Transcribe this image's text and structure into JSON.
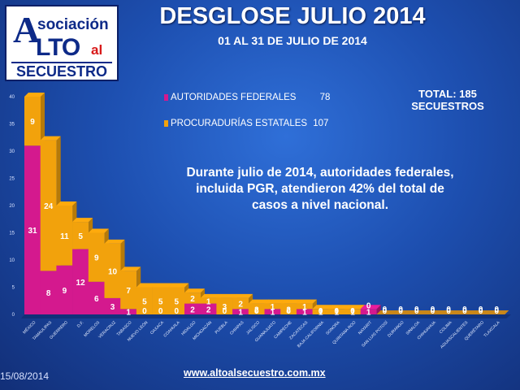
{
  "header": {
    "title": "DESGLOSE JULIO 2014",
    "subtitle": "01 AL 31 DE JULIO DE 2014"
  },
  "logo": {
    "a": "A",
    "asociacion": "sociación",
    "alto": "LTO",
    "al": "al",
    "secuestro": "SECUESTRO"
  },
  "legend": {
    "federales_label": "AUTORIDADES FEDERALES",
    "federales_value": "78",
    "estatales_label": "PROCURADURÍAS ESTATALES",
    "estatales_value": "107"
  },
  "total": {
    "line1": "TOTAL: 185",
    "line2": "SECUESTROS"
  },
  "annotation": {
    "line1": "Durante julio de 2014, autoridades federales,",
    "line2": "incluida PGR, atendieron 42% del total de",
    "line3": "casos a nivel nacional."
  },
  "footer": {
    "date": "15/08/2014",
    "url": "www.altoalsecuestro.com.mx"
  },
  "colors": {
    "federales": "#d4198e",
    "estatales": "#f2a20c",
    "background": "#1d4fb0"
  },
  "chart_data": {
    "type": "bar",
    "stacked": true,
    "title": "DESGLOSE JULIO 2014",
    "ylim": [
      0,
      40
    ],
    "yticks": [
      0,
      5,
      10,
      15,
      20,
      25,
      30,
      35,
      40
    ],
    "categories": [
      "MÉXICO",
      "TAMAULIPAS",
      "GUERRERO",
      "D.F.",
      "MORELOS",
      "VERACRUZ",
      "TABASCO",
      "NUEVO LEÓN",
      "OAXACA",
      "COAHUILA",
      "HIDALGO",
      "MICHOACÁN",
      "PUEBLA",
      "CHIAPAS",
      "JALISCO",
      "GUANAJUATO",
      "CAMPECHE",
      "ZACATECAS",
      "BAJA CALIFORNIA",
      "SONORA",
      "QUINTANA ROO",
      "NAYARIT",
      "SAN LUIS POTOSÍ",
      "DURANGO",
      "SINALOA",
      "CHIHUAHUA",
      "COLIMA",
      "AGUASCALIENTES",
      "QUERÉTARO",
      "TLAXCALA"
    ],
    "series": [
      {
        "name": "AUTORIDADES FEDERALES",
        "values": [
          31,
          8,
          9,
          12,
          6,
          3,
          1,
          0,
          0,
          0,
          2,
          2,
          0,
          1,
          0,
          1,
          0,
          1,
          0,
          0,
          0,
          1,
          0,
          0,
          0,
          0,
          0,
          0,
          0,
          0
        ]
      },
      {
        "name": "PROCURADURÍAS ESTATALES",
        "values": [
          9,
          24,
          11,
          5,
          9,
          10,
          7,
          5,
          5,
          5,
          2,
          1,
          3,
          2,
          2,
          1,
          2,
          1,
          1,
          1,
          1,
          0,
          0,
          0,
          0,
          0,
          0,
          0,
          0,
          0
        ]
      }
    ]
  }
}
